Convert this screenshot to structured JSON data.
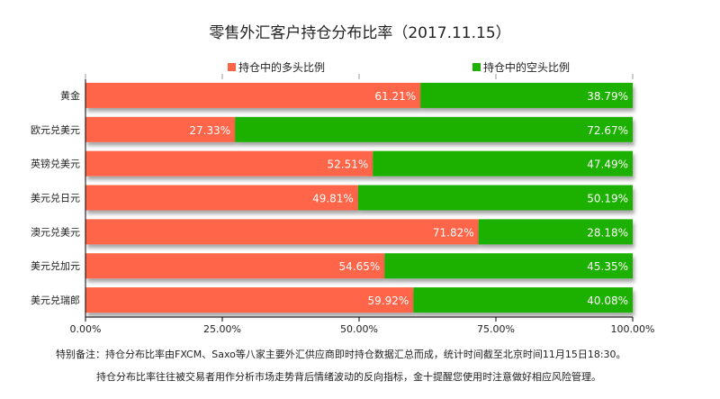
{
  "chart_data": {
    "type": "bar",
    "stacked": true,
    "orientation": "horizontal",
    "title": "零售外汇客户持仓分布比率（2017.11.15）",
    "categories": [
      "黄金",
      "欧元兑美元",
      "英镑兑美元",
      "美元兑日元",
      "澳元兑美元",
      "美元兑加元",
      "美元兑瑞郎"
    ],
    "series": [
      {
        "name": "持仓中的多头比例",
        "color": "#fe6548",
        "values": [
          61.21,
          27.33,
          52.51,
          49.81,
          71.82,
          54.65,
          59.92
        ]
      },
      {
        "name": "持仓中的空头比例",
        "color": "#1db101",
        "values": [
          38.79,
          72.67,
          47.49,
          50.19,
          28.18,
          45.35,
          40.08
        ]
      }
    ],
    "xlim": [
      0,
      100
    ],
    "x_ticks": [
      "0.00%",
      "25.00%",
      "50.00%",
      "75.00%",
      "100.00%"
    ],
    "legend": "top",
    "grid": false
  },
  "notes": [
    "特别备注：持仓分布比率由FXCM、Saxo等八家主要外汇供应商即时持仓数据汇总而成，统计时间截至北京时间11月15日18:30。",
    "持仓分布比率往往被交易者用作分析市场走势背后情绪波动的反向指标，金十提醒您使用时注意做好相应风险管理。"
  ]
}
